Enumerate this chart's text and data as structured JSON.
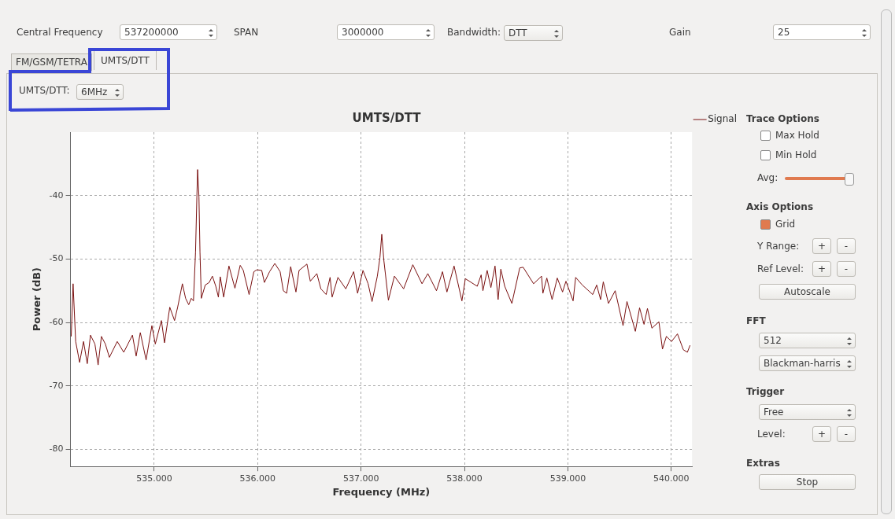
{
  "chart_data": {
    "type": "line",
    "title": "UMTS/DTT",
    "xlabel": "Frequency (MHz)",
    "ylabel": "Power (dB)",
    "xlim": [
      534.19,
      540.2
    ],
    "ylim": [
      -82.7,
      -30
    ],
    "xticks": [
      {
        "value": 535,
        "label": "535.000"
      },
      {
        "value": 536,
        "label": "536.000"
      },
      {
        "value": 537,
        "label": "537.000"
      },
      {
        "value": 538,
        "label": "538.000"
      },
      {
        "value": 539,
        "label": "539.000"
      },
      {
        "value": 540,
        "label": "540.000"
      }
    ],
    "yticks": [
      -80,
      -70,
      -60,
      -50,
      -40
    ],
    "grid": true,
    "legend": "top right",
    "marker": "none",
    "line_style": "solid",
    "series": [
      {
        "name": "Signal",
        "color": "#7a1010",
        "x": [
          534.197,
          534.215,
          534.24,
          534.278,
          534.316,
          534.352,
          534.383,
          534.426,
          534.457,
          534.489,
          534.527,
          534.566,
          534.642,
          534.705,
          534.789,
          534.825,
          534.865,
          534.921,
          534.977,
          535.01,
          535.069,
          535.099,
          535.15,
          535.196,
          535.226,
          535.272,
          535.303,
          535.333,
          535.358,
          535.379,
          535.399,
          535.412,
          535.419,
          535.432,
          535.442,
          535.455,
          535.493,
          535.531,
          535.562,
          535.595,
          535.62,
          535.638,
          535.671,
          535.722,
          535.78,
          535.831,
          535.861,
          535.917,
          535.963,
          535.993,
          536.039,
          536.065,
          536.115,
          536.166,
          536.217,
          536.248,
          536.28,
          536.319,
          536.37,
          536.4,
          536.476,
          536.509,
          536.572,
          536.611,
          536.662,
          536.7,
          536.72,
          536.776,
          536.852,
          536.928,
          536.966,
          537.018,
          537.068,
          537.106,
          537.157,
          537.182,
          537.2,
          537.22,
          537.264,
          537.322,
          537.411,
          537.5,
          537.589,
          537.645,
          537.729,
          537.787,
          537.83,
          537.899,
          537.975,
          538.008,
          538.123,
          538.161,
          538.178,
          538.219,
          538.255,
          538.295,
          538.325,
          538.351,
          538.389,
          538.458,
          538.534,
          538.567,
          538.668,
          538.745,
          538.758,
          538.796,
          538.847,
          538.897,
          538.948,
          538.981,
          539.05,
          539.075,
          539.139,
          539.24,
          539.278,
          539.316,
          539.342,
          539.392,
          539.457,
          539.533,
          539.571,
          539.652,
          539.693,
          539.736,
          539.769,
          539.812,
          539.88,
          539.914,
          539.952,
          540.002,
          540.059,
          540.116,
          540.155,
          540.181
        ],
        "values": [
          -62.2,
          -53.9,
          -63.0,
          -66.3,
          -63.0,
          -66.5,
          -62.0,
          -63.4,
          -66.7,
          -62.2,
          -63.4,
          -65.5,
          -63.0,
          -64.7,
          -62.0,
          -65.3,
          -61.6,
          -65.9,
          -60.5,
          -63.4,
          -59.7,
          -63.2,
          -57.6,
          -59.7,
          -57.6,
          -53.9,
          -56.2,
          -57.2,
          -56.2,
          -56.6,
          -48.9,
          -40.2,
          -35.9,
          -40.2,
          -48.9,
          -56.2,
          -54.1,
          -53.7,
          -52.7,
          -54.3,
          -56.0,
          -52.8,
          -56.0,
          -51.1,
          -54.6,
          -51.0,
          -51.8,
          -55.6,
          -52.0,
          -51.7,
          -51.8,
          -53.7,
          -52.0,
          -50.7,
          -52.0,
          -55.0,
          -55.4,
          -51.2,
          -55.2,
          -51.8,
          -50.8,
          -53.5,
          -52.3,
          -54.7,
          -55.6,
          -52.9,
          -56.0,
          -52.9,
          -54.7,
          -52.0,
          -55.4,
          -51.8,
          -53.9,
          -56.7,
          -52.7,
          -49.8,
          -46.1,
          -50.2,
          -56.5,
          -52.7,
          -54.7,
          -50.9,
          -53.9,
          -52.3,
          -55.0,
          -52.0,
          -55.2,
          -51.1,
          -56.6,
          -53.1,
          -54.3,
          -52.5,
          -55.0,
          -51.8,
          -54.5,
          -51.1,
          -56.4,
          -51.6,
          -54.3,
          -57.0,
          -51.4,
          -51.3,
          -53.9,
          -52.7,
          -55.4,
          -53.0,
          -56.4,
          -53.0,
          -55.2,
          -53.5,
          -56.6,
          -52.9,
          -54.1,
          -55.6,
          -54.1,
          -56.4,
          -53.6,
          -57.0,
          -55.0,
          -60.5,
          -56.7,
          -61.4,
          -57.7,
          -60.3,
          -57.8,
          -60.9,
          -59.9,
          -64.2,
          -62.2,
          -63.0,
          -61.8,
          -64.3,
          -64.7,
          -63.6
        ]
      }
    ],
    "annotations": [
      "Central Frequency",
      "537200000",
      "SPAN",
      "3000000",
      "Bandwidth:",
      "DTT",
      "Gain",
      "25",
      "FM/GSM/TETRA",
      "UMTS/DTT",
      "UMTS/DTT:",
      "6MHz",
      "Trace Options",
      "Max Hold",
      "Min Hold",
      "Avg:",
      "Axis Options",
      "Grid",
      "Y Range:",
      "+",
      "-",
      "Ref Level:",
      "+",
      "-",
      "Autoscale",
      "FFT",
      "512",
      "Blackman-harris",
      "Trigger",
      "Free",
      "Level:",
      "+",
      "-",
      "Extras",
      "Stop"
    ]
  }
}
